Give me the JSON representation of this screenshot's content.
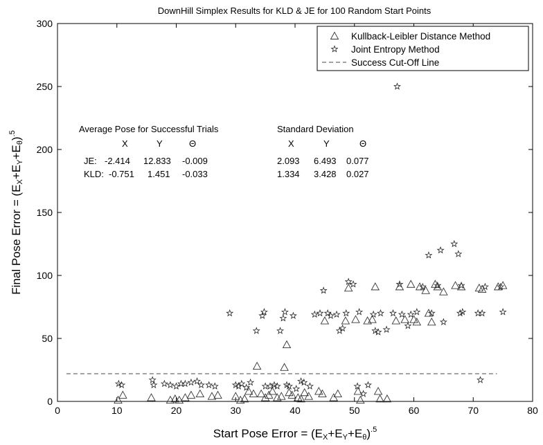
{
  "chart_data": {
    "type": "scatter",
    "title": "DownHill Simplex Results for KLD & JE for 100 Random Start Points",
    "xlim": [
      0,
      80
    ],
    "ylim": [
      0,
      300
    ],
    "xticks": [
      0,
      10,
      20,
      30,
      40,
      50,
      60,
      70,
      80
    ],
    "yticks": [
      0,
      50,
      100,
      150,
      200,
      250,
      300
    ],
    "xlabel": {
      "prefix": "Start Pose Error  = (E",
      "sub1": "X",
      "mid1": "+E",
      "sub2": "Y",
      "mid2": "+E",
      "sub3": "θ",
      "suffix": ")",
      "exp": ".5"
    },
    "ylabel": {
      "prefix": "Final Pose Error  = (E",
      "sub1": "X",
      "mid1": "+E",
      "sub2": "Y",
      "mid2": "+E",
      "sub3": "θ",
      "suffix": ")",
      "exp": ".5"
    },
    "grid": false,
    "legend_position": "top-right",
    "legend": [
      {
        "name": "Kullback-Leibler Distance Method",
        "marker": "triangle"
      },
      {
        "name": "Joint Entropy Method",
        "marker": "star"
      },
      {
        "name": "Success Cut-Off Line",
        "marker": "dashed-line"
      }
    ],
    "cutoff_line": {
      "y": 22,
      "x_start": 1.5,
      "x_end": 74
    },
    "annotation": {
      "avg_title": "Average Pose for Successful Trials",
      "std_title": "Standard Deviation",
      "col_x": "X",
      "col_y": "Y",
      "col_theta": "Θ",
      "rows": [
        {
          "label": "JE:",
          "avg": [
            "-2.414",
            "12.833",
            "-0.009"
          ],
          "std": [
            "2.093",
            "6.493",
            "0.077"
          ]
        },
        {
          "label": "KLD:",
          "avg": [
            "-0.751",
            "1.451",
            "-0.033"
          ],
          "std": [
            "1.334",
            "3.428",
            "0.027"
          ]
        }
      ]
    },
    "series": [
      {
        "name": "Kullback-Leibler Distance Method",
        "marker": "triangle",
        "points": [
          [
            10.2,
            1
          ],
          [
            11,
            5
          ],
          [
            15.8,
            3
          ],
          [
            19,
            1
          ],
          [
            19.8,
            2
          ],
          [
            20.5,
            1
          ],
          [
            21.5,
            3
          ],
          [
            22.5,
            5
          ],
          [
            24,
            6
          ],
          [
            26,
            4
          ],
          [
            27,
            5
          ],
          [
            30,
            4
          ],
          [
            30.8,
            1
          ],
          [
            31.5,
            2
          ],
          [
            32.2,
            8
          ],
          [
            33,
            6
          ],
          [
            33.6,
            28
          ],
          [
            34.3,
            6
          ],
          [
            35,
            3
          ],
          [
            35.6,
            5
          ],
          [
            36.2,
            8
          ],
          [
            37,
            3
          ],
          [
            37.7,
            4
          ],
          [
            38.2,
            27
          ],
          [
            38.6,
            45
          ],
          [
            39,
            7
          ],
          [
            39.5,
            5
          ],
          [
            40.5,
            3
          ],
          [
            41,
            2
          ],
          [
            41.6,
            7
          ],
          [
            42.3,
            4
          ],
          [
            44,
            8
          ],
          [
            44.6,
            6
          ],
          [
            45,
            64
          ],
          [
            46.5,
            3
          ],
          [
            47.2,
            6
          ],
          [
            48.5,
            64
          ],
          [
            49,
            90
          ],
          [
            50.2,
            65
          ],
          [
            50.6,
            8
          ],
          [
            51,
            1
          ],
          [
            52.2,
            64
          ],
          [
            53,
            65
          ],
          [
            53.5,
            91
          ],
          [
            54,
            8
          ],
          [
            54.3,
            2
          ],
          [
            55.5,
            2
          ],
          [
            57,
            64
          ],
          [
            57.6,
            91
          ],
          [
            58.5,
            65
          ],
          [
            59.5,
            93
          ],
          [
            60,
            65
          ],
          [
            60.5,
            63
          ],
          [
            61,
            91
          ],
          [
            62,
            88
          ],
          [
            62.5,
            70
          ],
          [
            63,
            63
          ],
          [
            63.6,
            93
          ],
          [
            64,
            91
          ],
          [
            65,
            87
          ],
          [
            67,
            92
          ],
          [
            68,
            91
          ],
          [
            71,
            90
          ],
          [
            71.5,
            89
          ],
          [
            74.2,
            91
          ],
          [
            75,
            92
          ]
        ]
      },
      {
        "name": "Joint Entropy Method",
        "marker": "star",
        "points": [
          [
            10.3,
            14
          ],
          [
            10.8,
            13
          ],
          [
            16,
            17
          ],
          [
            16.2,
            13
          ],
          [
            18,
            14
          ],
          [
            19,
            13
          ],
          [
            20,
            12
          ],
          [
            20.8,
            14
          ],
          [
            21.5,
            14
          ],
          [
            22.5,
            15
          ],
          [
            23.5,
            16
          ],
          [
            24.2,
            13
          ],
          [
            25.5,
            13
          ],
          [
            26.5,
            12
          ],
          [
            29,
            70
          ],
          [
            30,
            13
          ],
          [
            30.5,
            12
          ],
          [
            31,
            14
          ],
          [
            31.8,
            11
          ],
          [
            32.5,
            15
          ],
          [
            33.5,
            56
          ],
          [
            34.5,
            68
          ],
          [
            34.8,
            71
          ],
          [
            35,
            12
          ],
          [
            35.8,
            12
          ],
          [
            36.5,
            13
          ],
          [
            37,
            12
          ],
          [
            37.5,
            56
          ],
          [
            38,
            66
          ],
          [
            38.3,
            71
          ],
          [
            38.6,
            13
          ],
          [
            39,
            12
          ],
          [
            39.7,
            68
          ],
          [
            40.2,
            10
          ],
          [
            41,
            16
          ],
          [
            41.5,
            15
          ],
          [
            42.5,
            12
          ],
          [
            43.3,
            69
          ],
          [
            44.2,
            70
          ],
          [
            44.8,
            88
          ],
          [
            45.5,
            70
          ],
          [
            46,
            68
          ],
          [
            47,
            69
          ],
          [
            47.5,
            56
          ],
          [
            48,
            58
          ],
          [
            48.6,
            70
          ],
          [
            49,
            95
          ],
          [
            49.8,
            93
          ],
          [
            50.5,
            12
          ],
          [
            50.8,
            71
          ],
          [
            51.5,
            6
          ],
          [
            52.3,
            13
          ],
          [
            53.2,
            69
          ],
          [
            53.5,
            56
          ],
          [
            54,
            55
          ],
          [
            54.4,
            70
          ],
          [
            55.4,
            57
          ],
          [
            56.5,
            70
          ],
          [
            57.2,
            250
          ],
          [
            57.6,
            93
          ],
          [
            58,
            69
          ],
          [
            59,
            60
          ],
          [
            59.5,
            69
          ],
          [
            60.5,
            71
          ],
          [
            61.5,
            91
          ],
          [
            62.5,
            116
          ],
          [
            63,
            70
          ],
          [
            64,
            92
          ],
          [
            64.5,
            120
          ],
          [
            65,
            63
          ],
          [
            66.8,
            125
          ],
          [
            67.5,
            117
          ],
          [
            67.8,
            70
          ],
          [
            68.2,
            71
          ],
          [
            68,
            92
          ],
          [
            70.8,
            70
          ],
          [
            71.2,
            17
          ],
          [
            71.5,
            70
          ],
          [
            72,
            91
          ],
          [
            74.6,
            91
          ],
          [
            75,
            71
          ]
        ]
      }
    ]
  }
}
